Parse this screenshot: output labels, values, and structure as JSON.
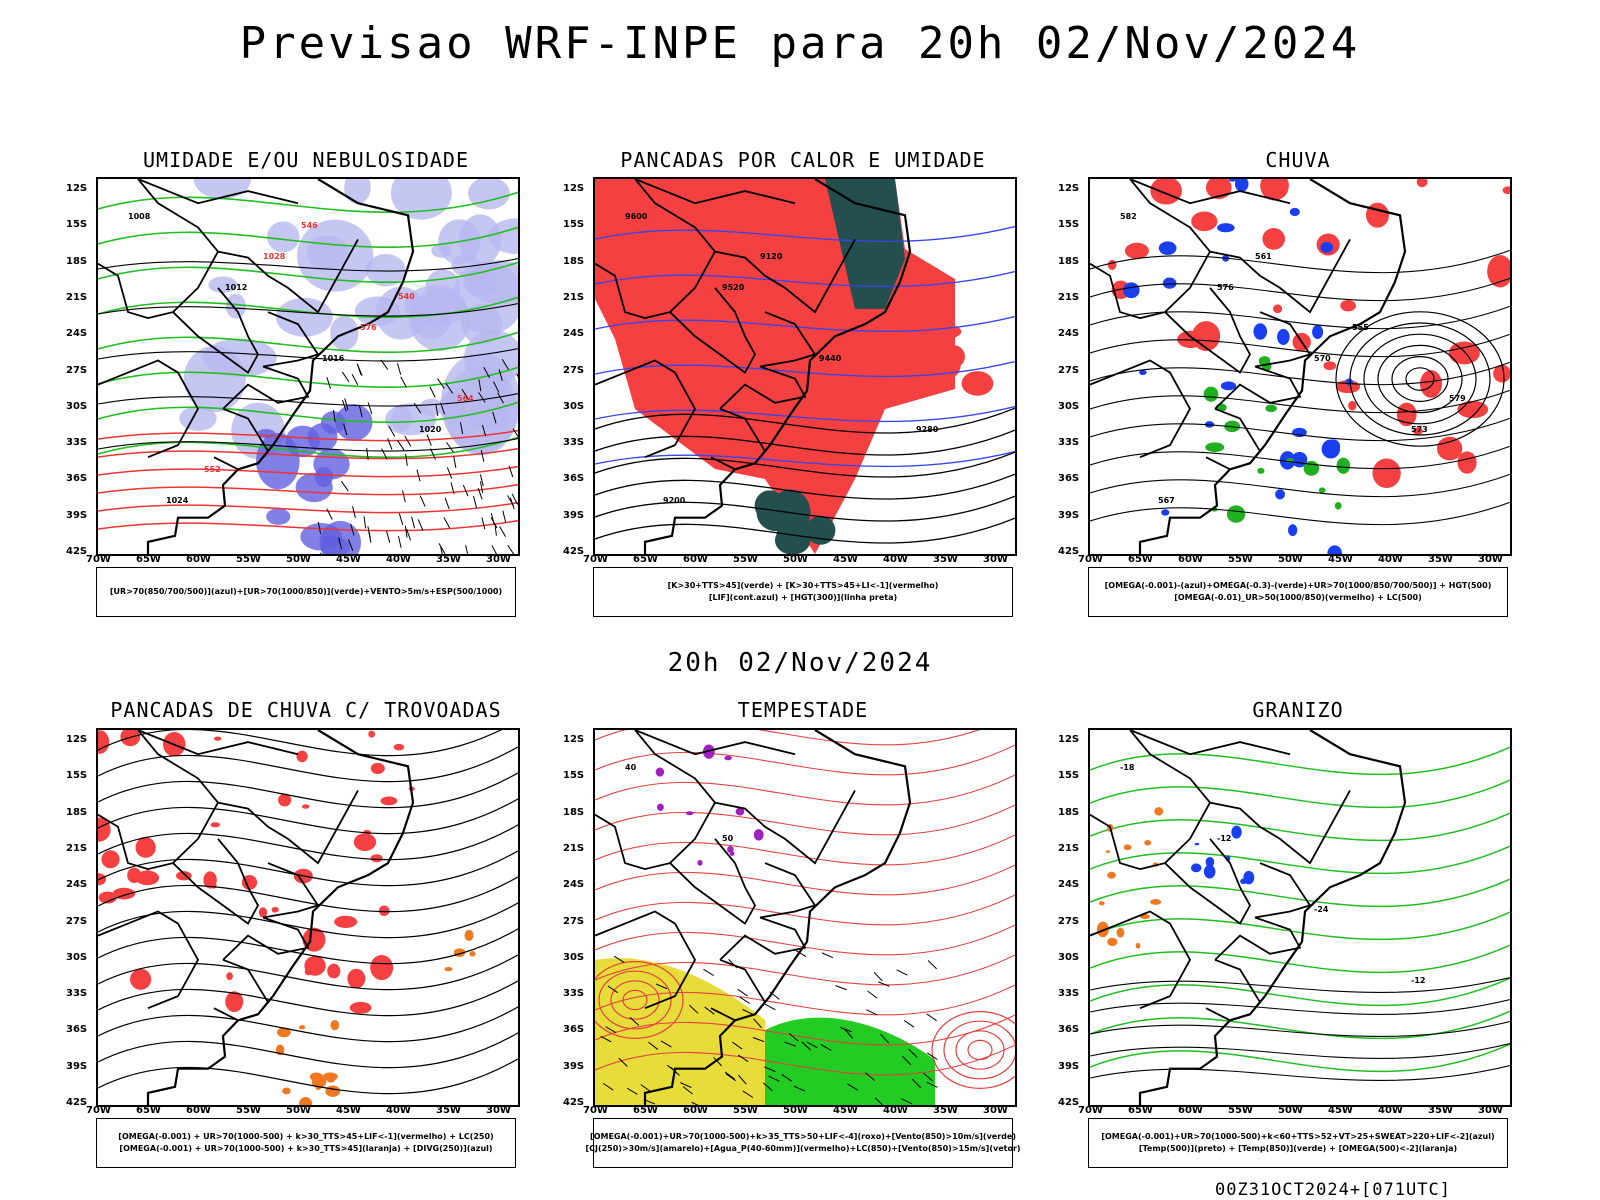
{
  "header": {
    "title": "Previsao WRF-INPE  para 20h 02/Nov/2024",
    "subtitle": "20h 02/Nov/2024",
    "footer": "00Z31OCT2024+[071UTC]"
  },
  "axes": {
    "lat_labels": [
      "12S",
      "15S",
      "18S",
      "21S",
      "24S",
      "27S",
      "30S",
      "33S",
      "36S",
      "39S",
      "42S"
    ],
    "lon_labels": [
      "70W",
      "65W",
      "60W",
      "55W",
      "50W",
      "45W",
      "40W",
      "35W",
      "30W"
    ]
  },
  "panels": [
    {
      "title": "UMIDADE E/OU NEBULOSIDADE",
      "legend": [
        "[UR>70(850/700/500)](azul)+[UR>70(1000/850)](verde)+VENTO>5m/s+ESP(500/1000)"
      ],
      "labels": [
        "1008",
        "1012",
        "1016",
        "1020",
        "1024",
        "1028",
        "576",
        "564",
        "552",
        "546",
        "540"
      ]
    },
    {
      "title": "PANCADAS POR CALOR E UMIDADE",
      "legend": [
        "[K>30+TTS>45](verde) + [K>30+TTS>45+LI<-1](vermelho)",
        "[LIF](cont.azul) + [HGT(300)](linha preta)"
      ],
      "labels": [
        "9600",
        "9520",
        "9440",
        "9280",
        "9200",
        "9120"
      ]
    },
    {
      "title": "CHUVA",
      "legend": [
        "[OMEGA(-0.001)-(azul)+OMEGA(-0.3)-(verde)+UR>70(1000/850/700/500)] + HGT(500)",
        "[OMEGA(-0.01)_UR>50(1000/850)(vermelho) + LC(500)"
      ],
      "labels": [
        "582",
        "576",
        "570",
        "573",
        "567",
        "561",
        "555",
        "579"
      ]
    },
    {
      "title": "PANCADAS DE CHUVA C/ TROVOADAS",
      "legend": [
        "[OMEGA(-0.001) + UR>70(1000-500) + k>30_TTS>45+LIF<-1](vermelho) + LC(250)",
        "[OMEGA(-0.001) + UR>70(1000-500) + k>30_TTS>45](laranja) + [DIVG(250)](azul)"
      ],
      "labels": []
    },
    {
      "title": "TEMPESTADE",
      "legend": [
        "[OMEGA(-0.001)+UR>70(1000-500)+k>35_TTS>50+LIF<-4](roxo)+[Vento(850)>10m/s](verde)",
        "[CJ(250)>30m/s](amarelo)+[Agua_P(40-60mm)](vermelho)+LC(850)+[Vento(850)>15m/s](vetor)"
      ],
      "labels": [
        "40",
        "50"
      ]
    },
    {
      "title": "GRANIZO",
      "legend": [
        "[OMEGA(-0.001)+UR>70(1000-500)+k<60+TTS>52+VT>25+SWEAT>220+LIF<-2](azul)",
        "[Temp(500)](preto) + [Temp(850)](verde) + [OMEGA(500)<-2](laranja)"
      ],
      "labels": [
        "-18",
        "-12",
        "-24",
        "-12"
      ]
    }
  ]
}
